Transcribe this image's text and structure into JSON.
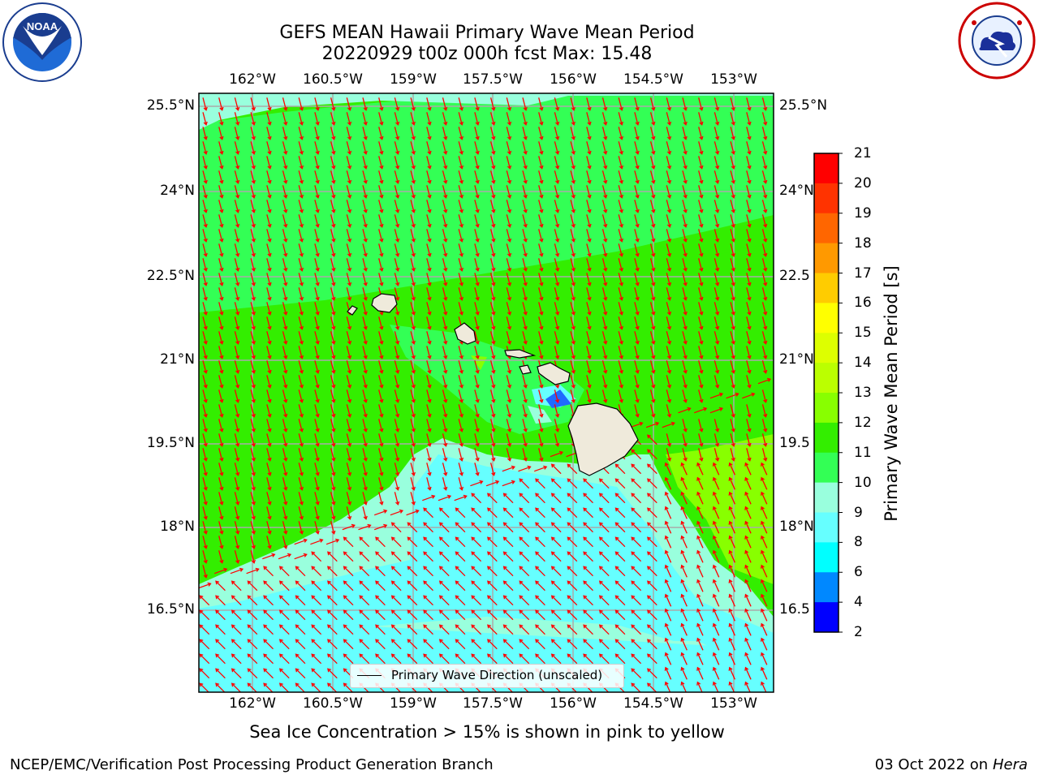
{
  "header": {
    "title_line1": "GEFS MEAN Hawaii Primary Wave Mean Period",
    "title_line2": "20220929 t00z 000h fcst   Max: 15.48"
  },
  "logos": {
    "noaa": "NOAA",
    "nws": "NATIONAL WEATHER SERVICE",
    "noaa_ring_text": "NATIONAL OCEANIC AND ATMOSPHERIC ADMINISTRATION · U.S. DEPARTMENT OF COMMERCE"
  },
  "map": {
    "x_ticks": [
      "162°W",
      "160.5°W",
      "159°W",
      "157.5°W",
      "156°W",
      "154.5°W",
      "153°W"
    ],
    "y_ticks_left": [
      "25.5°N",
      "24°N",
      "22.5°N",
      "21°N",
      "19.5°N",
      "18°N",
      "16.5°N"
    ],
    "y_ticks_right": [
      "25.5°N",
      "24°N",
      "22.5",
      "21°N",
      "19.5",
      "18°N",
      "16.5"
    ],
    "legend_label": "Primary Wave Direction (unscaled)",
    "arrow_color": "#ff0000",
    "land_color": "#efeadb",
    "grid_color": "#aaaaaa"
  },
  "colorbar": {
    "label": "Primary Wave Mean Period [s]",
    "ticks": [
      "21",
      "20",
      "19",
      "18",
      "17",
      "16",
      "15",
      "14",
      "13",
      "12",
      "11",
      "10",
      "9",
      "8",
      "6",
      "4",
      "2"
    ],
    "colors_top_to_bottom": [
      "#ff0000",
      "#ff3300",
      "#ff6600",
      "#ff9900",
      "#ffcc00",
      "#ffff00",
      "#ddff00",
      "#bbff00",
      "#88ff00",
      "#33ee00",
      "#33ff55",
      "#99ffdd",
      "#66ffff",
      "#00ffff",
      "#0088ff",
      "#0000ff"
    ]
  },
  "subtitle": "Sea Ice Concentration > 15% is shown in pink to yellow",
  "footer": {
    "left": "NCEP/EMC/Verification Post Processing Product Generation Branch",
    "right_prefix": "03 Oct 2022 on ",
    "right_host": "Hera"
  }
}
